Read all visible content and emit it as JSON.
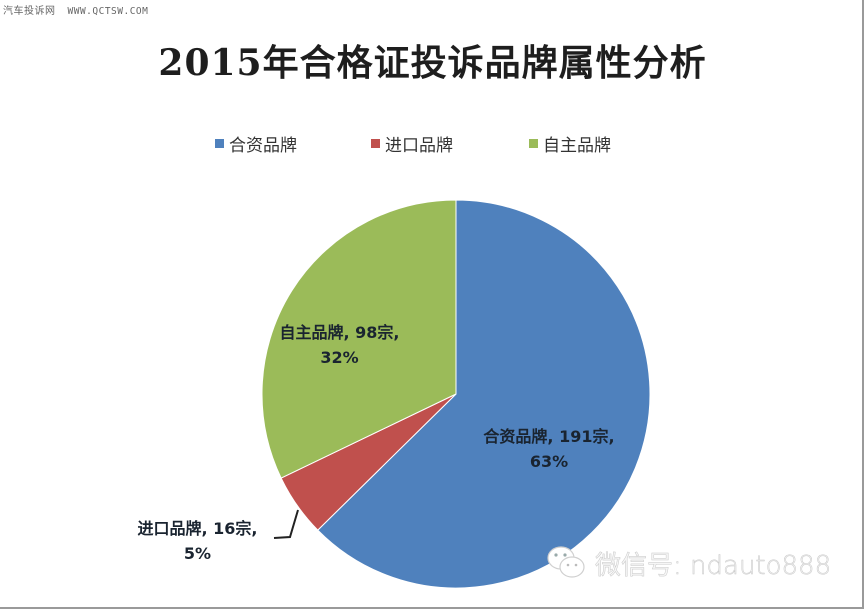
{
  "source": {
    "site_name": "汽车投诉网",
    "site_url": "WWW.QCTSW.COM"
  },
  "chart_data": {
    "type": "pie",
    "title": "2015年合格证投诉品牌属性分析",
    "categories": [
      "合资品牌",
      "进口品牌",
      "自主品牌"
    ],
    "values": [
      191,
      16,
      98
    ],
    "percentages": [
      63,
      5,
      32
    ],
    "unit": "宗",
    "colors": [
      "#4f81bd",
      "#c0504d",
      "#9bbb59"
    ],
    "legend_position": "top",
    "data_labels": [
      {
        "line1": "合资品牌, 191宗,",
        "line2": "63%"
      },
      {
        "line1": "进口品牌, 16宗,",
        "line2": "5%"
      },
      {
        "line1": "自主品牌, 98宗,",
        "line2": "32%"
      }
    ]
  },
  "legend": [
    {
      "label": "合资品牌",
      "color": "#4f81bd"
    },
    {
      "label": "进口品牌",
      "color": "#c0504d"
    },
    {
      "label": "自主品牌",
      "color": "#9bbb59"
    }
  ],
  "watermark": {
    "icon": "wechat-icon",
    "text": "微信号: ndauto888"
  }
}
